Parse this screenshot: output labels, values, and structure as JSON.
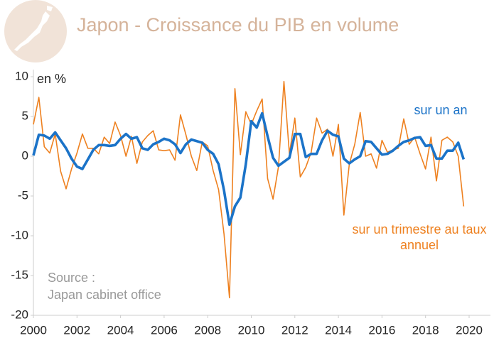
{
  "chart_data": {
    "type": "line",
    "title": "Japon - Croissance du PIB en volume",
    "y_label": "en %",
    "source_label": "Source :",
    "source": "Japan cabinet office",
    "xlim": [
      2000,
      2020
    ],
    "xticks": [
      2000,
      2002,
      2004,
      2006,
      2008,
      2010,
      2012,
      2014,
      2016,
      2018,
      2020
    ],
    "ylim": [
      -20,
      10
    ],
    "yticks": [
      -20,
      -15,
      -10,
      -5,
      0,
      5,
      10
    ],
    "x": [
      2000,
      2000.25,
      2000.5,
      2000.75,
      2001,
      2001.25,
      2001.5,
      2001.75,
      2002,
      2002.25,
      2002.5,
      2002.75,
      2003,
      2003.25,
      2003.5,
      2003.75,
      2004,
      2004.25,
      2004.5,
      2004.75,
      2005,
      2005.25,
      2005.5,
      2005.75,
      2006,
      2006.25,
      2006.5,
      2006.75,
      2007,
      2007.25,
      2007.5,
      2007.75,
      2008,
      2008.25,
      2008.5,
      2008.75,
      2009,
      2009.25,
      2009.5,
      2009.75,
      2010,
      2010.25,
      2010.5,
      2010.75,
      2011,
      2011.25,
      2011.5,
      2011.75,
      2012,
      2012.25,
      2012.5,
      2012.75,
      2013,
      2013.25,
      2013.5,
      2013.75,
      2014,
      2014.25,
      2014.5,
      2014.75,
      2015,
      2015.25,
      2015.5,
      2015.75,
      2016,
      2016.25,
      2016.5,
      2016.75,
      2017,
      2017.25,
      2017.5,
      2017.75,
      2018,
      2018.25,
      2018.5,
      2018.75,
      2019,
      2019.25,
      2019.5,
      2019.75
    ],
    "series": [
      {
        "name": "sur un trimestre au taux annuel",
        "color": "#ee8120",
        "width": 1.6,
        "values": [
          4.0,
          7.4,
          1.2,
          0.4,
          2.8,
          -1.9,
          -4.1,
          -1.6,
          0.4,
          2.8,
          1.0,
          1.0,
          0.3,
          2.4,
          1.6,
          4.3,
          2.6,
          0.0,
          2.5,
          -0.9,
          1.8,
          2.6,
          3.2,
          0.8,
          0.7,
          0.8,
          -0.5,
          5.2,
          2.7,
          0.0,
          -1.8,
          1.8,
          1.3,
          -1.8,
          -4.2,
          -9.8,
          -17.8,
          8.5,
          0.2,
          5.6,
          4.0,
          5.7,
          7.2,
          -2.8,
          -5.4,
          -1.3,
          9.4,
          0.3,
          4.8,
          -2.6,
          -1.4,
          0.5,
          4.8,
          2.9,
          3.4,
          0.0,
          4.0,
          -7.4,
          -1.0,
          1.5,
          5.5,
          0.0,
          0.3,
          -1.5,
          2.0,
          0.5,
          0.8,
          1.0,
          4.7,
          1.5,
          2.4,
          0.3,
          -1.6,
          2.4,
          -3.1,
          2.0,
          2.4,
          1.8,
          0.0,
          -6.3
        ]
      },
      {
        "name": "sur un an",
        "color": "#1b73c8",
        "width": 3.6,
        "values": [
          0.1,
          2.7,
          2.6,
          2.2,
          3.0,
          2.0,
          1.0,
          -0.3,
          -1.3,
          -1.6,
          -0.4,
          0.8,
          1.4,
          1.4,
          1.3,
          1.4,
          2.2,
          2.8,
          2.2,
          2.4,
          1.0,
          0.8,
          1.5,
          1.8,
          2.2,
          2.0,
          1.5,
          0.4,
          1.5,
          2.1,
          1.9,
          1.7,
          0.8,
          0.3,
          -1.0,
          -4.3,
          -8.6,
          -6.3,
          -5.2,
          -1.0,
          4.4,
          3.6,
          5.4,
          2.5,
          -0.2,
          -1.2,
          -0.7,
          -0.2,
          2.8,
          2.8,
          -0.1,
          0.3,
          0.3,
          2.0,
          3.2,
          2.7,
          2.5,
          -0.3,
          -0.9,
          -0.4,
          0.0,
          1.9,
          1.8,
          1.0,
          0.2,
          0.3,
          0.7,
          1.3,
          1.8,
          2.0,
          2.3,
          2.4,
          1.3,
          1.4,
          -0.3,
          -0.3,
          0.7,
          0.7,
          1.7,
          -0.4
        ]
      }
    ]
  }
}
